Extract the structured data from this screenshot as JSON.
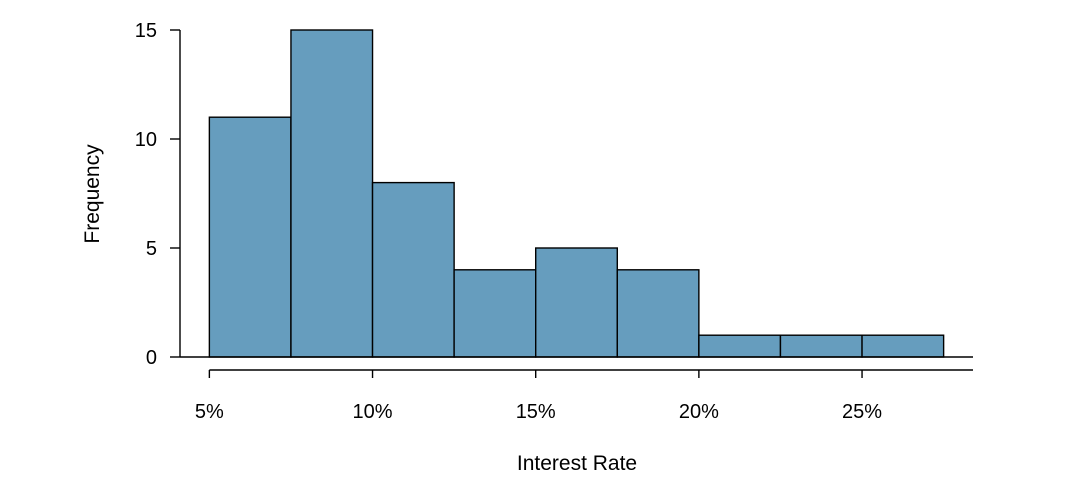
{
  "chart_data": {
    "type": "bar",
    "subtype": "histogram",
    "title": "",
    "xlabel": "Interest Rate",
    "ylabel": "Frequency",
    "bins": [
      {
        "start": 5,
        "end": 7.5,
        "value": 11
      },
      {
        "start": 7.5,
        "end": 10,
        "value": 15
      },
      {
        "start": 10,
        "end": 12.5,
        "value": 8
      },
      {
        "start": 12.5,
        "end": 15,
        "value": 4
      },
      {
        "start": 15,
        "end": 17.5,
        "value": 5
      },
      {
        "start": 17.5,
        "end": 20,
        "value": 4
      },
      {
        "start": 20,
        "end": 22.5,
        "value": 1
      },
      {
        "start": 22.5,
        "end": 25,
        "value": 1
      },
      {
        "start": 25,
        "end": 27.5,
        "value": 1
      }
    ],
    "xlim": [
      4.1,
      28.4
    ],
    "ylim": [
      0,
      15
    ],
    "x_ticks": [
      5,
      10,
      15,
      20,
      25
    ],
    "x_tick_labels": [
      "5%",
      "10%",
      "15%",
      "20%",
      "25%"
    ],
    "y_ticks": [
      0,
      5,
      10,
      15
    ],
    "y_tick_labels": [
      "0",
      "5",
      "10",
      "15"
    ],
    "grid": false,
    "legend": "none",
    "bar_color": "#669dbe",
    "bar_edge_color": "#000000"
  }
}
